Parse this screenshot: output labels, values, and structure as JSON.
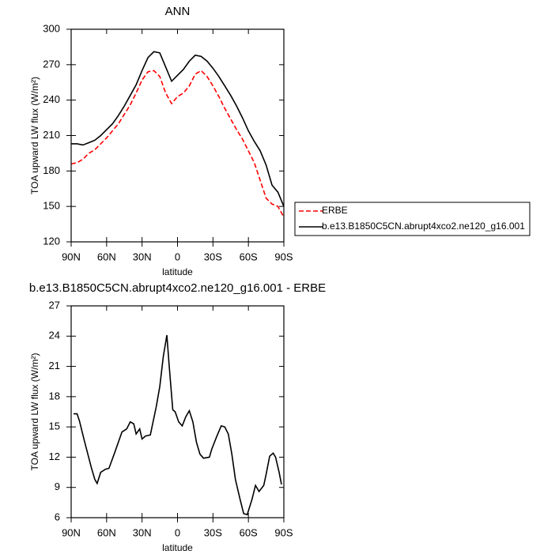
{
  "chart_data": [
    {
      "type": "line",
      "title": "ANN",
      "xlabel": "latitude",
      "ylabel": "TOA upward LW flux (W/m²)",
      "x": [
        90,
        85,
        80,
        75,
        70,
        65,
        60,
        55,
        50,
        45,
        40,
        35,
        30,
        25,
        20,
        15,
        10,
        5,
        0,
        -5,
        -10,
        -15,
        -20,
        -25,
        -30,
        -35,
        -40,
        -45,
        -50,
        -55,
        -60,
        -65,
        -70,
        -75,
        -80,
        -85,
        -90
      ],
      "xlim": [
        90,
        -90
      ],
      "xticks": [
        {
          "value": 90,
          "label": "90N"
        },
        {
          "value": 60,
          "label": "60N"
        },
        {
          "value": 30,
          "label": "30N"
        },
        0,
        {
          "value": -30,
          "label": "30S"
        },
        {
          "value": -60,
          "label": "60S"
        },
        {
          "value": -90,
          "label": "90S"
        }
      ],
      "ylim": [
        120,
        300
      ],
      "yticks": [
        120,
        150,
        180,
        210,
        240,
        270,
        300
      ],
      "legend": "right",
      "series": [
        {
          "name": "ERBE",
          "color": "#ff0000",
          "line_style": "dashed",
          "values": [
            186,
            187,
            190,
            195,
            198,
            203,
            208,
            214,
            220,
            228,
            236,
            246,
            257,
            264,
            265,
            260,
            246,
            237,
            243,
            246,
            252,
            262,
            265,
            260,
            252,
            243,
            233,
            224,
            215,
            207,
            197,
            187,
            172,
            157,
            152,
            150,
            141
          ]
        },
        {
          "name": "b.e13.B1850C5CN.abrupt4xco2.ne120_g16.001",
          "color": "#000000",
          "line_style": "solid",
          "values": [
            203,
            203,
            202,
            204,
            206,
            210,
            215,
            220,
            227,
            235,
            244,
            253,
            265,
            276,
            281,
            280,
            268,
            256,
            261,
            266,
            273,
            278,
            277,
            273,
            267,
            260,
            252,
            244,
            235,
            225,
            214,
            205,
            197,
            185,
            168,
            162,
            150
          ]
        }
      ]
    },
    {
      "type": "line",
      "title": "b.e13.B1850C5CN.abrupt4xco2.ne120_g16.001 - ERBE",
      "xlabel": "latitude",
      "ylabel": "TOA upward LW flux (W/m²)",
      "x": [
        88,
        85,
        83,
        79,
        73,
        70,
        68,
        65,
        61,
        58,
        53,
        47,
        43,
        40,
        37,
        35,
        32,
        30,
        27,
        23,
        18,
        15,
        12,
        9,
        7,
        4,
        2,
        -1,
        -4,
        -7,
        -10,
        -13,
        -16,
        -19,
        -22,
        -27,
        -29,
        -33,
        -37,
        -40,
        -43,
        -46,
        -49,
        -53,
        -56,
        -59,
        -63,
        -66,
        -69,
        -73,
        -75,
        -78,
        -81,
        -83,
        -86,
        -88
      ],
      "xlim": [
        90,
        -90
      ],
      "xticks": [
        {
          "value": 90,
          "label": "90N"
        },
        {
          "value": 60,
          "label": "60N"
        },
        {
          "value": 30,
          "label": "30N"
        },
        0,
        {
          "value": -30,
          "label": "30S"
        },
        {
          "value": -60,
          "label": "60S"
        },
        {
          "value": -90,
          "label": "90S"
        }
      ],
      "ylim": [
        6,
        27
      ],
      "yticks": [
        6,
        9,
        12,
        15,
        18,
        21,
        24,
        27
      ],
      "series": [
        {
          "color": "#000000",
          "line_style": "solid",
          "values": [
            16.3,
            16.3,
            15.6,
            13.7,
            11,
            9.8,
            9.4,
            10.5,
            10.8,
            10.9,
            12.5,
            14.5,
            14.8,
            15.5,
            15.3,
            14.3,
            14.8,
            13.8,
            14.1,
            14.2,
            17,
            19,
            22,
            24.1,
            21,
            16.7,
            16.5,
            15.5,
            15.1,
            16,
            16.6,
            15.5,
            13.5,
            12.3,
            11.9,
            12,
            12.8,
            14,
            15.1,
            15,
            14.3,
            12.3,
            9.8,
            7.8,
            6.4,
            6.3,
            7.8,
            9.2,
            8.6,
            9.2,
            10.3,
            12.1,
            12.4,
            12,
            10.5,
            9.3
          ]
        }
      ]
    }
  ]
}
